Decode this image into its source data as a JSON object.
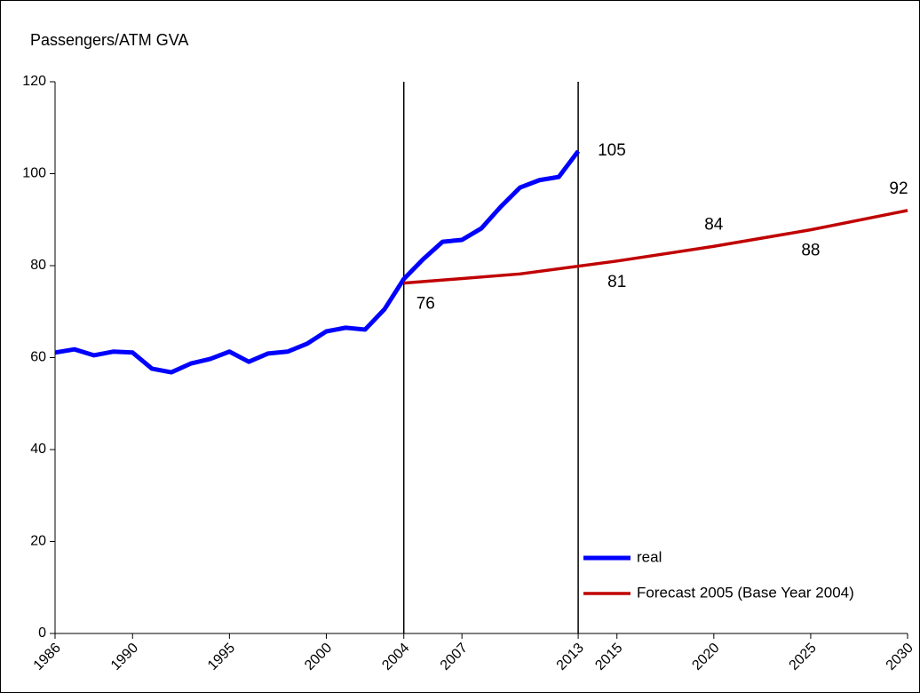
{
  "chart_data": {
    "type": "line",
    "title": "Passengers/ATM GVA",
    "xlim": [
      1986,
      2030
    ],
    "xticks": [
      1986,
      1990,
      1995,
      2000,
      2004,
      2007,
      2013,
      2015,
      2020,
      2025,
      2030
    ],
    "ylim": [
      0,
      120
    ],
    "yticks": [
      0,
      20,
      40,
      60,
      80,
      100,
      120
    ],
    "grid": false,
    "legend": "lower right",
    "vlines": [
      2004,
      2013
    ],
    "series": [
      {
        "name": "real",
        "color": "#0000ff",
        "x": [
          1986,
          1987,
          1988,
          1989,
          1990,
          1991,
          1992,
          1993,
          1994,
          1995,
          1996,
          1997,
          1998,
          1999,
          2000,
          2001,
          2002,
          2003,
          2004,
          2005,
          2006,
          2007,
          2008,
          2009,
          2010,
          2011,
          2012,
          2013
        ],
        "values": [
          61.1,
          61.8,
          60.5,
          61.3,
          61.1,
          57.6,
          56.8,
          58.7,
          59.7,
          61.3,
          59.1,
          60.9,
          61.3,
          63.0,
          65.7,
          66.5,
          66.1,
          70.5,
          77.1,
          81.4,
          85.2,
          85.6,
          88.1,
          92.8,
          97.0,
          98.6,
          99.3,
          104.9
        ],
        "value_labels": [
          null,
          null,
          null,
          null,
          null,
          null,
          null,
          null,
          null,
          null,
          null,
          null,
          null,
          null,
          null,
          null,
          null,
          null,
          null,
          null,
          null,
          null,
          null,
          null,
          null,
          null,
          null,
          "105"
        ]
      },
      {
        "name": "Forecast 2005 (Base Year 2004)",
        "color": "#c00000",
        "x": [
          2004,
          2010,
          2015,
          2020,
          2025,
          2030
        ],
        "values": [
          76.2,
          78.2,
          81,
          84.2,
          87.8,
          92
        ],
        "value_labels": [
          "76",
          null,
          "81",
          "84",
          "88",
          "92"
        ]
      }
    ]
  }
}
